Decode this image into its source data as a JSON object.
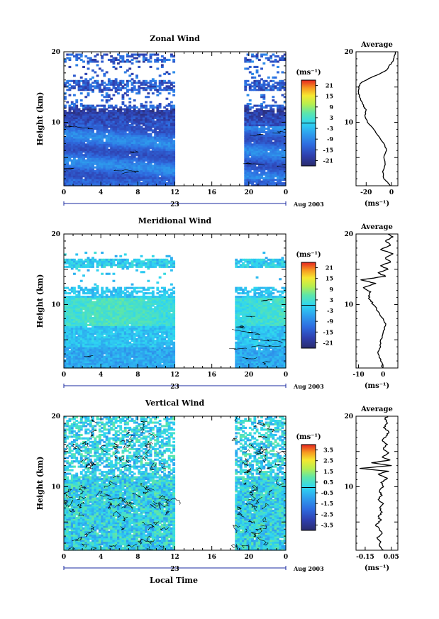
{
  "figure": {
    "xlabel": "Local Time",
    "date_label": "Aug 2003",
    "day_label": "23",
    "ylabel": "Height (km)",
    "unit_label": "(ms⁻¹)",
    "average_title": "Average",
    "average_xunit": "(ms⁻¹)"
  },
  "chart_data": [
    {
      "type": "heatmap",
      "title": "Zonal Wind",
      "xlabel": "",
      "ylabel": "Height (km)",
      "x_ticks": [
        "0",
        "4",
        "8",
        "12",
        "16",
        "20",
        "0"
      ],
      "xlim": [
        0,
        24
      ],
      "y_ticks": [
        "10",
        "20"
      ],
      "ylim": [
        1,
        20
      ],
      "data_gap": [
        12,
        19.5
      ],
      "colorbar": {
        "label": "(ms⁻¹)",
        "ticks": [
          "21",
          "15",
          "9",
          "3",
          "-3",
          "-9",
          "-15",
          "-21"
        ],
        "min": -24,
        "max": 24
      },
      "average": {
        "title": "Average",
        "xunit": "(ms⁻¹)",
        "x_ticks": [
          "-20",
          "0"
        ],
        "xlim": [
          -28,
          5
        ],
        "profile": [
          [
            1.0,
            -1
          ],
          [
            1.5,
            -3
          ],
          [
            2.0,
            -6
          ],
          [
            3.0,
            -7
          ],
          [
            4.0,
            -5
          ],
          [
            5.0,
            -6
          ],
          [
            6.0,
            -4
          ],
          [
            7.0,
            -6
          ],
          [
            8.0,
            -10
          ],
          [
            9.0,
            -14
          ],
          [
            10.0,
            -19
          ],
          [
            11.0,
            -21
          ],
          [
            11.8,
            -20
          ],
          [
            12.2,
            -22
          ],
          [
            12.8,
            -23
          ],
          [
            13.5,
            -25
          ],
          [
            14.2,
            -26
          ],
          [
            15.0,
            -26
          ],
          [
            15.6,
            -24
          ],
          [
            16.2,
            -18
          ],
          [
            16.8,
            -10
          ],
          [
            17.4,
            -4
          ],
          [
            18.0,
            -2
          ],
          [
            18.6,
            1
          ],
          [
            19.3,
            2
          ],
          [
            20.0,
            3
          ]
        ]
      }
    },
    {
      "type": "heatmap",
      "title": "Meridional Wind",
      "xlabel": "",
      "ylabel": "Height (km)",
      "x_ticks": [
        "0",
        "4",
        "8",
        "12",
        "16",
        "20",
        "0"
      ],
      "xlim": [
        0,
        24
      ],
      "y_ticks": [
        "10",
        "20"
      ],
      "ylim": [
        1,
        20
      ],
      "data_gap": [
        12,
        18.5
      ],
      "colorbar": {
        "label": "(ms⁻¹)",
        "ticks": [
          "21",
          "15",
          "9",
          "3",
          "-3",
          "-9",
          "-15",
          "-21"
        ],
        "min": -24,
        "max": 24
      },
      "average": {
        "title": "Average",
        "xunit": "(ms⁻¹)",
        "x_ticks": [
          "-10",
          "0"
        ],
        "xlim": [
          -11,
          6
        ],
        "profile": [
          [
            1.0,
            0
          ],
          [
            2.0,
            -1
          ],
          [
            3.0,
            -2
          ],
          [
            4.0,
            -1
          ],
          [
            5.0,
            -1
          ],
          [
            6.0,
            0
          ],
          [
            7.0,
            1
          ],
          [
            8.0,
            0
          ],
          [
            9.0,
            -2
          ],
          [
            10.0,
            -4
          ],
          [
            10.6,
            -5
          ],
          [
            11.2,
            -6
          ],
          [
            11.8,
            -5
          ],
          [
            12.4,
            -8
          ],
          [
            13.0,
            -3
          ],
          [
            13.5,
            -9
          ],
          [
            14.0,
            1
          ],
          [
            14.5,
            -2
          ],
          [
            15.0,
            2
          ],
          [
            15.5,
            -1
          ],
          [
            16.0,
            3
          ],
          [
            16.6,
            1
          ],
          [
            17.2,
            4
          ],
          [
            17.8,
            -1
          ],
          [
            18.4,
            3
          ],
          [
            19.0,
            1
          ],
          [
            19.6,
            4
          ],
          [
            20.0,
            2
          ]
        ]
      }
    },
    {
      "type": "heatmap",
      "title": "Vertical Wind",
      "xlabel": "Local Time",
      "ylabel": "Height (km)",
      "x_ticks": [
        "0",
        "4",
        "8",
        "12",
        "16",
        "20",
        "0"
      ],
      "xlim": [
        0,
        24
      ],
      "y_ticks": [
        "10",
        "20"
      ],
      "ylim": [
        1,
        20
      ],
      "data_gap": [
        12,
        18.5
      ],
      "colorbar": {
        "label": "(ms⁻¹)",
        "ticks": [
          "3.5",
          "2.5",
          "1.5",
          "0.5",
          "-0.5",
          "-1.5",
          "-2.5",
          "-3.5"
        ],
        "min": -4,
        "max": 4
      },
      "average": {
        "title": "Average",
        "xunit": "(ms⁻¹)",
        "x_ticks": [
          "-0.15",
          "0.05"
        ],
        "xlim": [
          -0.22,
          0.1
        ],
        "profile": [
          [
            1.0,
            -0.01
          ],
          [
            1.6,
            -0.04
          ],
          [
            2.2,
            -0.03
          ],
          [
            2.8,
            -0.06
          ],
          [
            3.4,
            -0.02
          ],
          [
            4.0,
            -0.04
          ],
          [
            4.6,
            -0.07
          ],
          [
            5.2,
            -0.03
          ],
          [
            5.8,
            -0.05
          ],
          [
            6.4,
            -0.02
          ],
          [
            7.0,
            -0.04
          ],
          [
            7.6,
            -0.01
          ],
          [
            8.2,
            -0.05
          ],
          [
            8.8,
            -0.02
          ],
          [
            9.4,
            -0.04
          ],
          [
            10.0,
            -0.01
          ],
          [
            10.6,
            -0.03
          ],
          [
            11.2,
            0.02
          ],
          [
            11.8,
            -0.05
          ],
          [
            12.2,
            0.03
          ],
          [
            12.6,
            -0.19
          ],
          [
            13.0,
            0.05
          ],
          [
            13.4,
            -0.1
          ],
          [
            13.8,
            0.04
          ],
          [
            14.2,
            -0.02
          ],
          [
            14.8,
            0.03
          ],
          [
            15.4,
            -0.01
          ],
          [
            16.0,
            0.02
          ],
          [
            16.6,
            -0.02
          ],
          [
            17.2,
            0.01
          ],
          [
            17.8,
            0.03
          ],
          [
            18.4,
            -0.01
          ],
          [
            19.0,
            0.02
          ],
          [
            19.6,
            0.0
          ],
          [
            20.0,
            0.02
          ]
        ]
      }
    }
  ]
}
